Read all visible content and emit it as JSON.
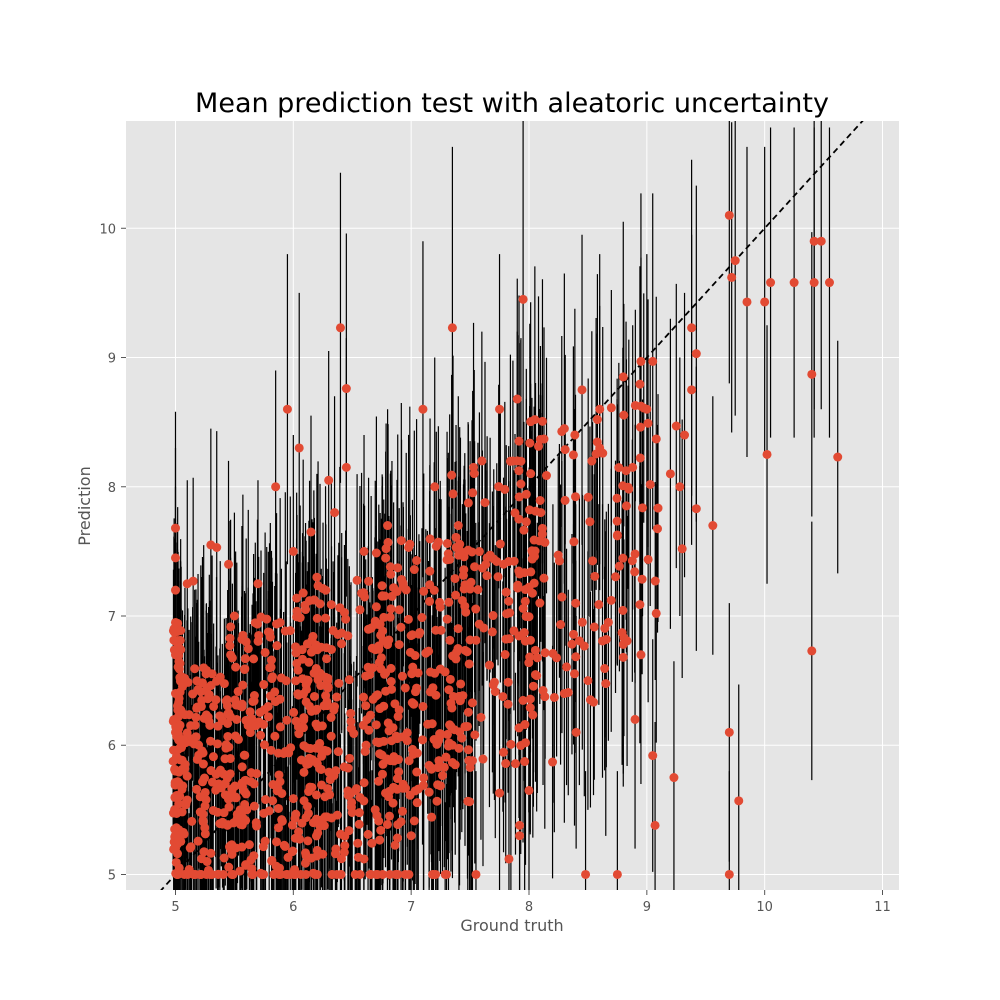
{
  "chart_data": {
    "type": "scatter",
    "title": "Mean prediction test with aleatoric uncertainty",
    "xlabel": "Ground truth",
    "ylabel": "Prediction",
    "xlim": [
      4.58,
      11.14
    ],
    "ylim": [
      4.88,
      10.83
    ],
    "xticks": [
      "5",
      "6",
      "7",
      "8",
      "9",
      "10",
      "11"
    ],
    "yticks": [
      "5",
      "6",
      "7",
      "8",
      "9",
      "10"
    ],
    "grid": true,
    "reference_line": "y = x",
    "colors": {
      "background": "#e5e5e5",
      "grid": "#ffffff",
      "points": "#e24a33",
      "errorbars": "#000000",
      "reference": "#000000"
    },
    "series": [
      {
        "points": [
          [
            5.0,
            7.68,
            0.9
          ],
          [
            5.0,
            7.45,
            0.85
          ],
          [
            5.0,
            7.2,
            0.8
          ],
          [
            5.0,
            6.95,
            0.8
          ],
          [
            5.0,
            6.7,
            0.75
          ],
          [
            5.0,
            6.4,
            0.7
          ],
          [
            5.0,
            6.1,
            0.7
          ],
          [
            5.0,
            5.8,
            0.6
          ],
          [
            5.0,
            5.5,
            0.5
          ],
          [
            5.0,
            5.2,
            0.4
          ],
          [
            5.1,
            7.25,
            0.8
          ],
          [
            5.15,
            7.27,
            0.8
          ],
          [
            5.3,
            7.55,
            0.9
          ],
          [
            5.35,
            7.53,
            0.9
          ],
          [
            5.45,
            7.4,
            0.8
          ],
          [
            5.5,
            7.0,
            0.8
          ],
          [
            5.6,
            6.8,
            0.8
          ],
          [
            5.7,
            7.25,
            0.8
          ],
          [
            5.8,
            6.6,
            0.8
          ],
          [
            5.85,
            8.0,
            0.9
          ],
          [
            5.95,
            8.6,
            1.2
          ],
          [
            6.05,
            8.3,
            1.2
          ],
          [
            6.0,
            7.5,
            0.9
          ],
          [
            6.15,
            7.65,
            0.9
          ],
          [
            6.2,
            7.3,
            0.8
          ],
          [
            6.3,
            8.05,
            1.0
          ],
          [
            6.4,
            9.23,
            1.2
          ],
          [
            6.45,
            8.76,
            1.2
          ],
          [
            6.45,
            8.15,
            1.0
          ],
          [
            6.35,
            7.8,
            0.9
          ],
          [
            6.6,
            7.5,
            0.9
          ],
          [
            6.8,
            7.7,
            0.9
          ],
          [
            7.1,
            8.6,
            1.3
          ],
          [
            7.35,
            9.23,
            1.4
          ],
          [
            7.2,
            8.0,
            1.0
          ],
          [
            7.4,
            7.7,
            1.0
          ],
          [
            7.6,
            8.2,
            1.0
          ],
          [
            7.75,
            8.6,
            1.2
          ],
          [
            7.95,
            9.45,
            1.4
          ],
          [
            7.9,
            8.2,
            1.0
          ],
          [
            8.1,
            7.8,
            1.0
          ],
          [
            8.3,
            8.45,
            1.2
          ],
          [
            8.45,
            8.75,
            1.2
          ],
          [
            8.6,
            8.6,
            1.2
          ],
          [
            8.8,
            8.85,
            1.2
          ],
          [
            8.95,
            8.97,
            1.3
          ],
          [
            9.05,
            8.97,
            1.3
          ],
          [
            9.0,
            8.6,
            1.2
          ],
          [
            9.2,
            8.1,
            1.2
          ],
          [
            9.38,
            8.75,
            1.2
          ],
          [
            9.38,
            9.23,
            1.3
          ],
          [
            9.42,
            9.03,
            1.3
          ],
          [
            9.42,
            7.83,
            1.1
          ],
          [
            9.56,
            7.7,
            1.0
          ],
          [
            9.7,
            10.1,
            1.3
          ],
          [
            9.72,
            9.62,
            1.2
          ],
          [
            9.75,
            9.75,
            1.2
          ],
          [
            9.85,
            9.43,
            1.2
          ],
          [
            10.0,
            9.43,
            1.2
          ],
          [
            10.05,
            9.58,
            1.2
          ],
          [
            10.25,
            9.58,
            1.2
          ],
          [
            10.42,
            9.9,
            1.3
          ],
          [
            10.48,
            9.9,
            1.3
          ],
          [
            10.42,
            9.58,
            1.2
          ],
          [
            10.55,
            9.58,
            1.2
          ],
          [
            10.4,
            8.87,
            1.1
          ],
          [
            10.02,
            8.25,
            1.0
          ],
          [
            10.62,
            8.23,
            0.9
          ],
          [
            10.4,
            6.73,
            1.0
          ],
          [
            9.7,
            6.1,
            1.0
          ],
          [
            9.78,
            5.57,
            0.9
          ],
          [
            9.7,
            5.0,
            0.8
          ],
          [
            9.23,
            5.75,
            0.9
          ],
          [
            9.07,
            5.38,
            0.8
          ],
          [
            9.05,
            5.92,
            0.9
          ],
          [
            8.9,
            6.2,
            1.0
          ],
          [
            8.95,
            6.7,
            1.0
          ],
          [
            8.8,
            6.68,
            1.0
          ],
          [
            8.8,
            6.78,
            1.0
          ],
          [
            8.75,
            5.0,
            0.8
          ],
          [
            8.48,
            5.0,
            0.8
          ],
          [
            8.4,
            6.1,
            0.9
          ],
          [
            7.55,
            5.0,
            0.8
          ],
          [
            7.83,
            5.12,
            0.8
          ],
          [
            7.75,
            5.63,
            0.8
          ],
          [
            7.92,
            5.3,
            0.8
          ],
          [
            7.92,
            5.38,
            0.8
          ],
          [
            8.0,
            5.65,
            0.8
          ],
          [
            8.2,
            5.87,
            0.9
          ],
          [
            7.0,
            5.3,
            0.7
          ],
          [
            7.3,
            5.0,
            0.7
          ],
          [
            6.95,
            5.0,
            0.7
          ],
          [
            7.1,
            6.3,
            0.9
          ],
          [
            8.3,
            6.4,
            1.0
          ],
          [
            8.5,
            6.5,
            1.0
          ],
          [
            9.08,
            7.02,
            1.0
          ],
          [
            9.3,
            7.52,
            1.0
          ],
          [
            8.9,
            7.48,
            1.0
          ],
          [
            8.75,
            7.62,
            1.0
          ],
          [
            9.28,
            8.0,
            1.0
          ],
          [
            9.32,
            8.4,
            1.1
          ],
          [
            9.25,
            8.47,
            1.1
          ],
          [
            9.08,
            8.37,
            1.1
          ],
          [
            8.88,
            8.15,
            1.1
          ],
          [
            8.6,
            8.3,
            1.1
          ]
        ],
        "clouds": [
          {
            "x": [
              4.98,
              5.05
            ],
            "y": [
              5.0,
              7.0
            ],
            "count": 80,
            "sd": [
              0.4,
              0.9
            ]
          },
          {
            "x": [
              5.05,
              5.6
            ],
            "y": [
              5.0,
              6.6
            ],
            "count": 160,
            "sd": [
              0.4,
              1.0
            ]
          },
          {
            "x": [
              5.4,
              6.3
            ],
            "y": [
              5.0,
              7.0
            ],
            "count": 200,
            "sd": [
              0.5,
              1.1
            ]
          },
          {
            "x": [
              6.0,
              6.9
            ],
            "y": [
              5.1,
              7.3
            ],
            "count": 190,
            "sd": [
              0.5,
              1.1
            ]
          },
          {
            "x": [
              6.7,
              7.5
            ],
            "y": [
              5.4,
              7.6
            ],
            "count": 170,
            "sd": [
              0.6,
              1.1
            ]
          },
          {
            "x": [
              7.3,
              8.1
            ],
            "y": [
              5.8,
              8.2
            ],
            "count": 120,
            "sd": [
              0.6,
              1.2
            ]
          },
          {
            "x": [
              7.9,
              8.7
            ],
            "y": [
              6.3,
              8.7
            ],
            "count": 80,
            "sd": [
              0.7,
              1.2
            ]
          },
          {
            "x": [
              8.5,
              9.1
            ],
            "y": [
              6.8,
              8.8
            ],
            "count": 40,
            "sd": [
              0.7,
              1.2
            ]
          },
          {
            "x": [
              5.0,
              7.3
            ],
            "y": [
              5.0,
              5.0
            ],
            "count": 60,
            "sd": [
              0.4,
              0.8
            ]
          }
        ]
      }
    ]
  }
}
